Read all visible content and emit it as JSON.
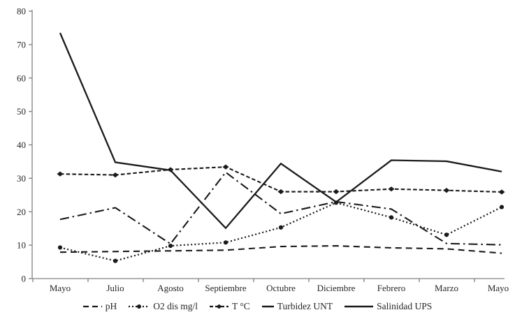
{
  "chart_data": {
    "type": "line",
    "title": "",
    "xlabel": "",
    "ylabel": "",
    "categories": [
      "Mayo",
      "Julio",
      "Agosto",
      "Septiembre",
      "Octubre",
      "Diciembre",
      "Febrero",
      "Marzo",
      "Mayo"
    ],
    "series": [
      {
        "name": "pH",
        "line_style": "dashed",
        "marker": "none",
        "values": [
          7.9,
          8.1,
          8.3,
          8.5,
          9.6,
          9.8,
          9.2,
          8.9,
          7.6
        ]
      },
      {
        "name": "O2 dis mg/l",
        "line_style": "dotted",
        "marker": "circle",
        "values": [
          9.3,
          5.3,
          9.8,
          10.8,
          15.3,
          22.7,
          18.3,
          13.1,
          21.4
        ]
      },
      {
        "name": "T °C",
        "line_style": "short-dash",
        "marker": "diamond",
        "values": [
          31.3,
          31.0,
          32.6,
          33.4,
          26.0,
          26.0,
          26.8,
          26.4,
          25.9
        ]
      },
      {
        "name": "Turbidez UNT",
        "line_style": "dash-dot",
        "marker": "none",
        "values": [
          17.7,
          21.2,
          10.4,
          31.8,
          19.4,
          23.0,
          20.8,
          10.5,
          10.1
        ]
      },
      {
        "name": "Salinidad UPS",
        "line_style": "solid",
        "marker": "none",
        "values": [
          73.5,
          34.8,
          32.4,
          15.1,
          34.4,
          22.9,
          35.4,
          35.1,
          32.0
        ]
      }
    ],
    "ylim": [
      0,
      80
    ],
    "ytick_step": 10,
    "ytick_labels": [
      "0",
      "10",
      "20",
      "30",
      "40",
      "50",
      "60",
      "70",
      "80"
    ],
    "grid": false,
    "legend_position": "bottom",
    "colors": {
      "line": "#1a1a1a",
      "axis": "#808080",
      "text": "#262626",
      "background": "#ffffff"
    }
  }
}
